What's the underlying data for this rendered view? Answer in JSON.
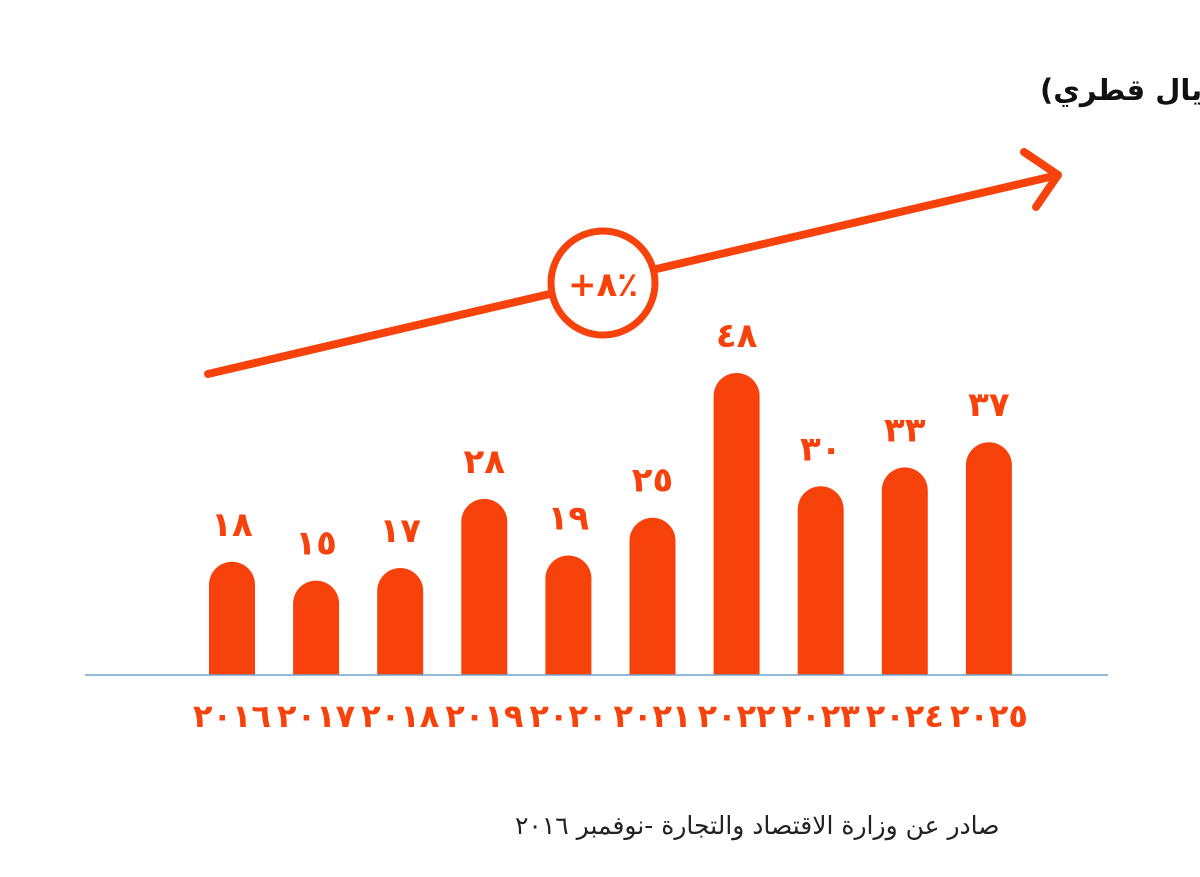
{
  "colors": {
    "accent": "#F8420C",
    "baseline": "#6FA3C9",
    "text": "#111111"
  },
  "chart_data": {
    "type": "bar",
    "title": "حجم السوق القطري لفرص السياحة الرياضية (بالمليون ريال قطري)",
    "categories": [
      "٢٠١٦",
      "٢٠١٧",
      "٢٠١٨",
      "٢٠١٩",
      "٢٠٢٠",
      "٢٠٢١",
      "٢٠٢٢",
      "٢٠٢٣",
      "٢٠٢٤",
      "٢٠٢٥"
    ],
    "values": [
      18,
      15,
      17,
      28,
      19,
      25,
      48,
      30,
      33,
      37
    ],
    "value_labels": [
      "١٨",
      "١٥",
      "١٧",
      "٢٨",
      "١٩",
      "٢٥",
      "٤٨",
      "٣٠",
      "٣٣",
      "٣٧"
    ],
    "xlabel": "",
    "ylabel": "",
    "ylim": [
      0,
      48
    ],
    "grid": false,
    "growth_annotation": "+٨٪",
    "source": "صادر عن وزارة الاقتصاد والتجارة -نوفمبر ٢٠١٦"
  }
}
